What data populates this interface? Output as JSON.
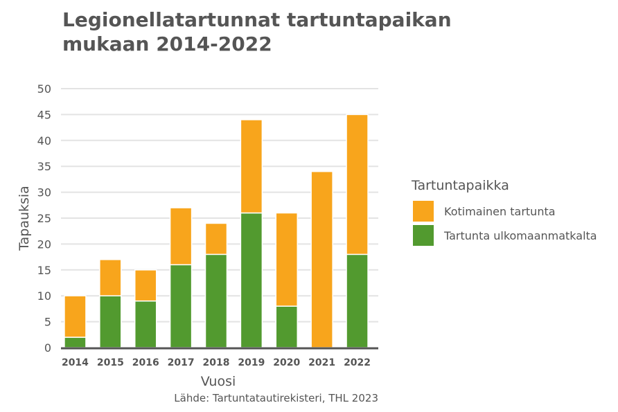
{
  "chart_data": {
    "type": "bar",
    "stacked": true,
    "title": "Legionellatartunnat tartuntapaikan mukaan 2014-2022",
    "title_lines": [
      "Legionellatartunnat tartuntapaikan",
      "mukaan 2014-2022"
    ],
    "xlabel": "Vuosi",
    "ylabel": "Tapauksia",
    "ylim": [
      0,
      50
    ],
    "yticks": [
      0,
      5,
      10,
      15,
      20,
      25,
      30,
      35,
      40,
      45,
      50
    ],
    "grid": true,
    "categories": [
      "2014",
      "2015",
      "2016",
      "2017",
      "2018",
      "2019",
      "2020",
      "2021",
      "2022"
    ],
    "series": [
      {
        "name": "Tartunta ulkomaanmatkalta",
        "color": "#529a2f",
        "values": [
          2,
          10,
          9,
          16,
          18,
          26,
          8,
          0,
          18
        ]
      },
      {
        "name": "Kotimainen tartunta",
        "color": "#f8a51c",
        "values": [
          8,
          7,
          6,
          11,
          6,
          18,
          18,
          34,
          27
        ]
      }
    ],
    "legend": {
      "title": "Tartuntapaikka",
      "placement": "right",
      "order": [
        "Kotimainen tartunta",
        "Tartunta ulkomaanmatkalta"
      ]
    },
    "source": "Lähde: Tartuntatautirekisteri, THL 2023"
  }
}
